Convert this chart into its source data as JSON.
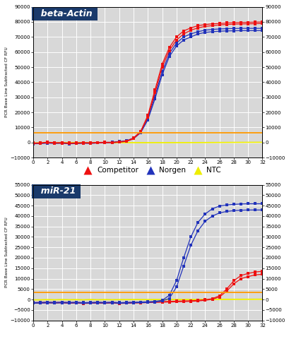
{
  "panel1": {
    "title": "beta-Actin",
    "title_bg": "#1a3a6b",
    "title_color": "white",
    "ylim": [
      -10000,
      90000
    ],
    "yticks": [
      -10000,
      0,
      10000,
      20000,
      30000,
      40000,
      50000,
      60000,
      70000,
      80000,
      90000
    ],
    "xlim": [
      0,
      32
    ],
    "xticks": [
      0,
      2,
      4,
      6,
      8,
      10,
      12,
      14,
      16,
      18,
      20,
      22,
      24,
      26,
      28,
      30,
      32
    ],
    "threshold_y": 6500,
    "threshold_color": "#ff9900",
    "competitor_color": "#ee1111",
    "norgen_color": "#2233bb",
    "ntc_color": "#eeee00",
    "competitor_y": [
      -300,
      -200,
      300,
      -100,
      -50,
      -300,
      -200,
      -50,
      -100,
      100,
      200,
      150,
      500,
      1000,
      3000,
      7500,
      18000,
      35000,
      52000,
      63000,
      70000,
      74000,
      76000,
      77500,
      78200,
      78700,
      79000,
      79300,
      79500,
      79600,
      79700,
      79800,
      79900
    ],
    "competitor_y2": [
      -600,
      -500,
      0,
      -400,
      -350,
      -600,
      -500,
      -350,
      -400,
      -200,
      -100,
      -50,
      200,
      700,
      2500,
      7000,
      17000,
      33000,
      50000,
      61000,
      68000,
      72000,
      74500,
      76000,
      77000,
      77500,
      78000,
      78300,
      78500,
      78600,
      78700,
      78800,
      78900
    ],
    "norgen_y": [
      -500,
      -400,
      -100,
      -300,
      -200,
      -500,
      -400,
      -200,
      -300,
      0,
      100,
      200,
      700,
      1200,
      3000,
      7000,
      16000,
      31000,
      47000,
      59000,
      66000,
      70000,
      72000,
      73500,
      74500,
      75000,
      75300,
      75500,
      75600,
      75700,
      75700,
      75700,
      75700
    ],
    "norgen_y2": [
      -800,
      -700,
      -400,
      -600,
      -500,
      -800,
      -700,
      -500,
      -600,
      -300,
      -200,
      -100,
      400,
      900,
      2500,
      6500,
      15000,
      29000,
      45000,
      57000,
      64000,
      68000,
      70000,
      72000,
      73000,
      73500,
      73800,
      74000,
      74100,
      74200,
      74200,
      74200,
      74200
    ],
    "ntc_y1": [
      -200,
      -100,
      50,
      -80,
      30,
      -50,
      80,
      -30,
      60,
      -40,
      70,
      -50,
      80,
      50,
      30,
      20,
      10,
      50,
      30,
      50,
      60,
      70,
      80,
      100,
      120,
      140,
      160,
      180,
      200,
      220,
      240,
      260,
      280
    ],
    "ntc_y2": [
      -400,
      -300,
      -150,
      -280,
      -170,
      -250,
      -120,
      -230,
      -140,
      -240,
      -130,
      -250,
      -120,
      -150,
      -170,
      -180,
      -190,
      -150,
      -170,
      -150,
      -140,
      -130,
      -120,
      -100,
      -80,
      -60,
      -40,
      -20,
      0,
      20,
      40,
      60,
      80
    ]
  },
  "panel2": {
    "title": "miR-21",
    "title_bg": "#1a3a6b",
    "title_color": "white",
    "ylim": [
      -10000,
      55000
    ],
    "yticks": [
      -10000,
      -5000,
      0,
      5000,
      10000,
      15000,
      20000,
      25000,
      30000,
      35000,
      40000,
      45000,
      50000,
      55000
    ],
    "xlim": [
      0,
      32
    ],
    "xticks": [
      0,
      2,
      4,
      6,
      8,
      10,
      12,
      14,
      16,
      18,
      20,
      22,
      24,
      26,
      28,
      30,
      32
    ],
    "threshold_y": 3500,
    "threshold_color": "#ff9900",
    "competitor_color": "#ee1111",
    "norgen_color": "#2233bb",
    "ntc_color": "#eeee00",
    "norgen_y1": [
      -1500,
      -1400,
      -1300,
      -1400,
      -1300,
      -1400,
      -1300,
      -1500,
      -1400,
      -1300,
      -1400,
      -1300,
      -1500,
      -1400,
      -1300,
      -1200,
      -1100,
      -900,
      -400,
      2000,
      9000,
      20000,
      30000,
      37000,
      41000,
      43500,
      44800,
      45300,
      45600,
      45800,
      45900,
      45900,
      45900
    ],
    "norgen_y2": [
      -1800,
      -1700,
      -1600,
      -1700,
      -1600,
      -1700,
      -1600,
      -1800,
      -1700,
      -1600,
      -1700,
      -1600,
      -1800,
      -1700,
      -1600,
      -1500,
      -1400,
      -1200,
      -700,
      500,
      6000,
      16000,
      26000,
      33000,
      37500,
      40000,
      41500,
      42200,
      42600,
      42800,
      42900,
      42900,
      42900
    ],
    "competitor_y1": [
      -1500,
      -1400,
      -1300,
      -1400,
      -1300,
      -1500,
      -1400,
      -1600,
      -1500,
      -1400,
      -1500,
      -1400,
      -1600,
      -1500,
      -1400,
      -1300,
      -1200,
      -1100,
      -1000,
      -900,
      -800,
      -700,
      -600,
      -400,
      -100,
      400,
      1800,
      5000,
      9000,
      11500,
      12500,
      13200,
      13500
    ],
    "competitor_y2": [
      -1800,
      -1700,
      -1600,
      -1700,
      -1600,
      -1800,
      -1700,
      -1900,
      -1800,
      -1700,
      -1800,
      -1700,
      -1900,
      -1800,
      -1700,
      -1600,
      -1500,
      -1400,
      -1300,
      -1200,
      -1100,
      -1000,
      -900,
      -700,
      -400,
      100,
      1200,
      4000,
      7500,
      10000,
      11000,
      11800,
      12100
    ],
    "ntc_y1": [
      -100,
      -50,
      30,
      -40,
      50,
      -20,
      30,
      -40,
      60,
      -30,
      50,
      -20,
      30,
      50,
      70,
      50,
      30,
      70,
      50,
      60,
      70,
      80,
      90,
      100,
      120,
      140,
      150,
      160,
      170,
      180,
      190,
      200,
      210
    ],
    "ntc_y2": [
      -300,
      -250,
      -170,
      -240,
      -150,
      -220,
      -170,
      -240,
      -140,
      -230,
      -150,
      -220,
      -170,
      -150,
      -130,
      -150,
      -170,
      -130,
      -150,
      -140,
      -130,
      -120,
      -110,
      -100,
      -80,
      -60,
      -50,
      -40,
      -30,
      -20,
      -10,
      0,
      10
    ]
  },
  "ylabel": "PCR Base Line Subtracted CF RFU",
  "legend_items": [
    {
      "label": "Competitor",
      "color": "#ee1111"
    },
    {
      "label": "Norgen",
      "color": "#2233bb"
    },
    {
      "label": "NTC",
      "color": "#eeee00"
    }
  ],
  "bg_color": "#d8d8d8",
  "grid_color": "white"
}
